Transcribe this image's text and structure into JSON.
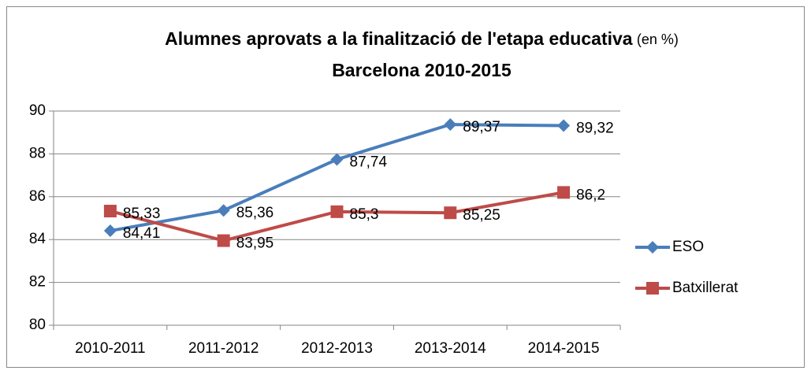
{
  "chart_data": {
    "type": "line",
    "title": "Alumnes aprovats a la finalització de l'etapa educativa",
    "title_note": "(en %)",
    "subtitle": "Barcelona 2010-2015",
    "categories": [
      "2010-2011",
      "2011-2012",
      "2012-2013",
      "2013-2014",
      "2014-2015"
    ],
    "series": [
      {
        "name": "ESO",
        "color": "#4a7ebb",
        "marker": "diamond",
        "values": [
          84.41,
          85.36,
          87.74,
          89.37,
          89.32
        ],
        "value_labels": [
          "84,41",
          "85,36",
          "87,74",
          "89,37",
          "89,32"
        ]
      },
      {
        "name": "Batxillerat",
        "color": "#be4b48",
        "marker": "square",
        "values": [
          85.33,
          83.95,
          85.3,
          85.25,
          86.2
        ],
        "value_labels": [
          "85,33",
          "83,95",
          "85,3",
          "85,25",
          "86,2"
        ]
      }
    ],
    "ylim": [
      80,
      90
    ],
    "yticks": [
      80,
      82,
      84,
      86,
      88,
      90
    ],
    "grid": true,
    "legend": "right"
  }
}
